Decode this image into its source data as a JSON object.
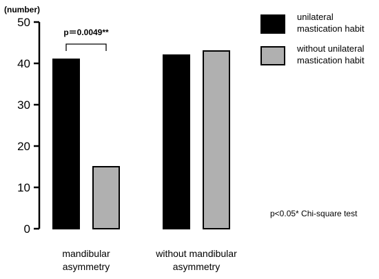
{
  "chart_data": {
    "type": "bar",
    "ylabel": "(number)",
    "ylim": [
      0,
      50
    ],
    "yticks": [
      0,
      10,
      20,
      30,
      40,
      50
    ],
    "categories": [
      [
        "mandibular",
        "asymmetry"
      ],
      [
        "without mandibular",
        "asymmetry"
      ]
    ],
    "series": [
      {
        "name": [
          "unilateral",
          "mastication habit"
        ],
        "color": "#000000",
        "values": [
          41,
          42
        ]
      },
      {
        "name": [
          "without unilateral",
          "mastication habit"
        ],
        "color": "#b0b0b0",
        "values": [
          15,
          43
        ]
      }
    ],
    "significance": {
      "category_index": 0,
      "label": "p＝0.0049**"
    },
    "test_note": "p<0.05* Chi-square test"
  }
}
